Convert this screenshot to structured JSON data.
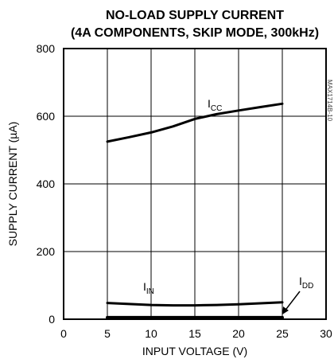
{
  "chart_data": {
    "type": "line",
    "title_line1": "NO-LOAD SUPPLY CURRENT",
    "title_line2": "(4A COMPONENTS, SKIP MODE, 300kHz)",
    "xlabel": "INPUT VOLTAGE (V)",
    "ylabel": "SUPPLY CURRENT (µA)",
    "xlim": [
      0,
      30
    ],
    "ylim": [
      0,
      800
    ],
    "x_ticks": [
      0,
      5,
      10,
      15,
      20,
      25,
      30
    ],
    "y_ticks": [
      0,
      200,
      400,
      600,
      800
    ],
    "grid": true,
    "side_label": "MAX1714B-10",
    "series": [
      {
        "name": "ICC",
        "label_main": "I",
        "label_sub": "CC",
        "x": [
          5,
          7.5,
          10,
          12.5,
          15,
          17.5,
          20,
          22.5,
          25
        ],
        "y": [
          525,
          538,
          552,
          570,
          592,
          606,
          617,
          627,
          637
        ]
      },
      {
        "name": "IIN",
        "label_main": "I",
        "label_sub": "IN",
        "x": [
          5,
          7.5,
          10,
          12.5,
          15,
          17.5,
          20,
          22.5,
          25
        ],
        "y": [
          48,
          45,
          42,
          41,
          41,
          42,
          44,
          47,
          50
        ]
      },
      {
        "name": "IDD",
        "label_main": "I",
        "label_sub": "DD",
        "x": [
          5,
          7.5,
          10,
          12.5,
          15,
          17.5,
          20,
          22.5,
          25
        ],
        "y": [
          5,
          5,
          5,
          5,
          5,
          5,
          5,
          5,
          5
        ]
      }
    ]
  }
}
